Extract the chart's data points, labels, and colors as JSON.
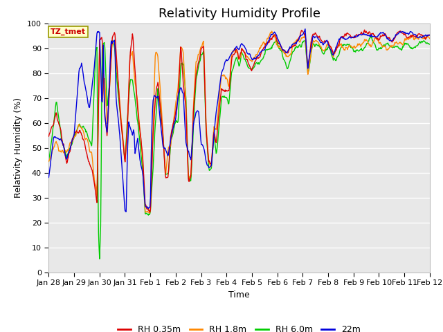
{
  "title": "Relativity Humidity Profile",
  "xlabel": "Time",
  "ylabel": "Relativity Humidity (%)",
  "ylim": [
    0,
    100
  ],
  "yticks": [
    0,
    10,
    20,
    30,
    40,
    50,
    60,
    70,
    80,
    90,
    100
  ],
  "xtick_labels": [
    "Jan 28",
    "Jan 29",
    "Jan 30",
    "Jan 31",
    "Feb 1",
    "Feb 2",
    "Feb 3",
    "Feb 4",
    "Feb 5",
    "Feb 6",
    "Feb 7",
    "Feb 8",
    "Feb 9",
    "Feb 10",
    "Feb 11",
    "Feb 12"
  ],
  "legend_entries": [
    "RH 0.35m",
    "RH 1.8m",
    "RH 6.0m",
    "22m"
  ],
  "line_colors": [
    "#dd0000",
    "#ff8800",
    "#00cc00",
    "#0000dd"
  ],
  "annotation_text": "TZ_tmet",
  "annotation_bg": "#ffffcc",
  "annotation_border": "#999900",
  "annotation_text_color": "#cc0000",
  "plot_bg": "#e8e8e8",
  "fig_bg": "#ffffff",
  "title_fontsize": 13,
  "axis_fontsize": 9,
  "tick_fontsize": 8,
  "legend_fontsize": 9,
  "grid_color": "#ffffff",
  "n_points": 720
}
